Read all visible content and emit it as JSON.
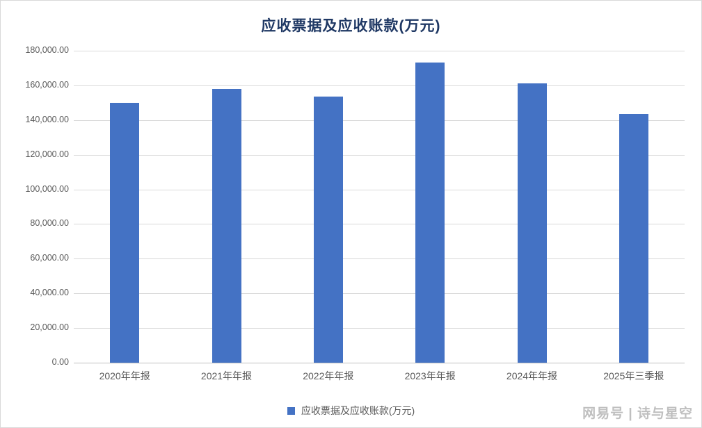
{
  "title": "应收票据及应收账款(万元)",
  "legend": {
    "label": "应收票据及应收账款(万元)",
    "marker_color": "#4472C4"
  },
  "watermark": "网易号 | 诗与星空",
  "colors": {
    "bar": "#4472C4",
    "gridline": "#D9D9D9",
    "axis": "#BFBFBF",
    "title": "#1F3864",
    "tick_text": "#595959"
  },
  "chart_data": {
    "type": "bar",
    "title": "应收票据及应收账款(万元)",
    "categories": [
      "2020年年报",
      "2021年年报",
      "2022年年报",
      "2023年年报",
      "2024年年报",
      "2025年三季报"
    ],
    "values": [
      150000,
      158000,
      153500,
      173000,
      161000,
      143700
    ],
    "xlabel": "",
    "ylabel": "",
    "ylim": [
      0,
      180000
    ],
    "ytick_step": 20000,
    "ytick_labels": [
      "0.00",
      "20,000.00",
      "40,000.00",
      "60,000.00",
      "80,000.00",
      "100,000.00",
      "120,000.00",
      "140,000.00",
      "160,000.00",
      "180,000.00"
    ],
    "grid": true,
    "legend_position": "bottom",
    "bar_color": "#4472C4"
  }
}
